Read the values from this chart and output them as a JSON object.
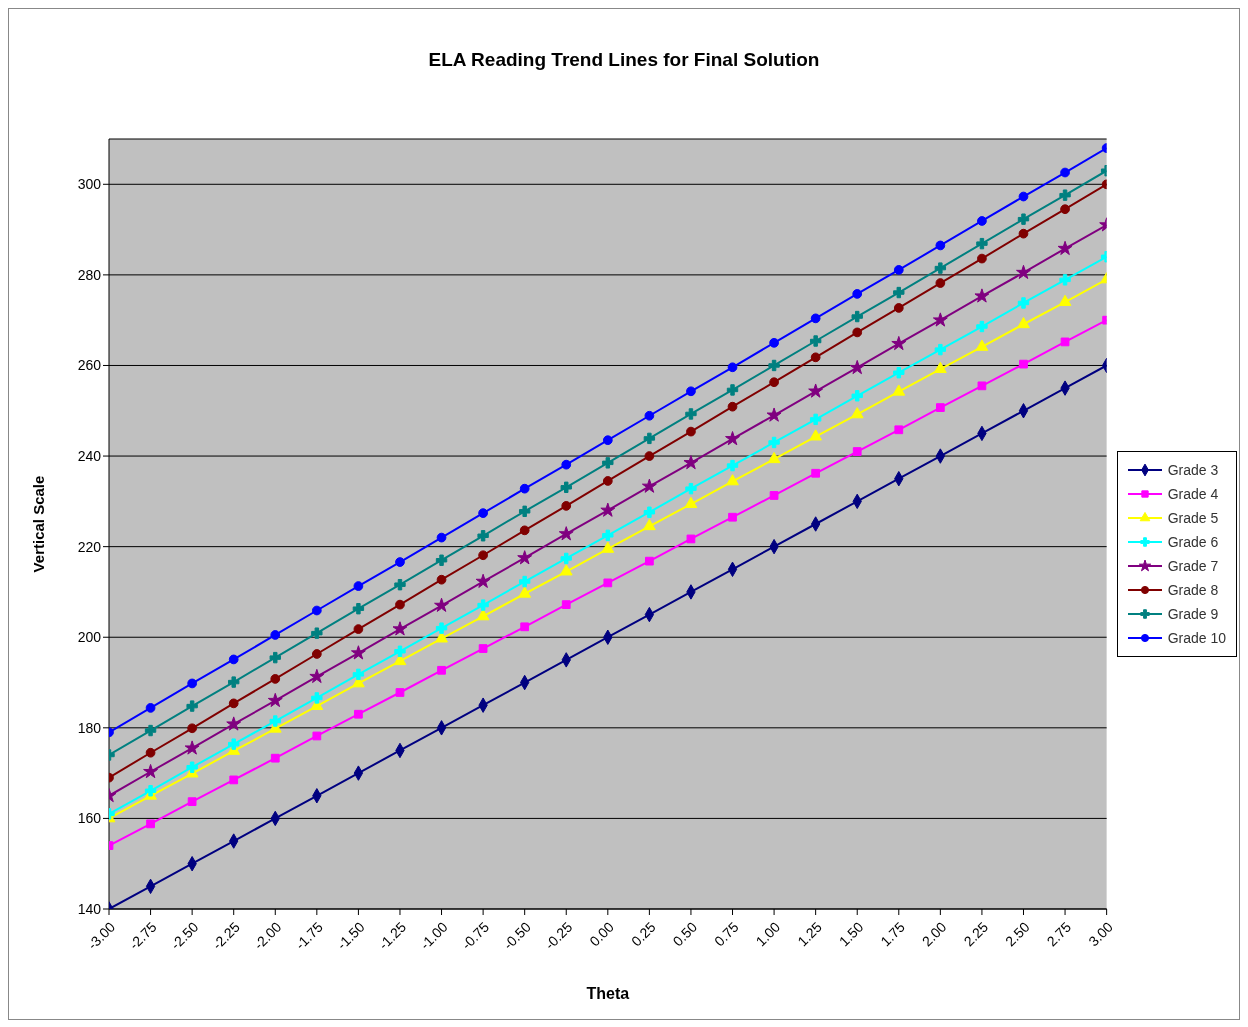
{
  "chart_data": {
    "type": "line",
    "title": "ELA Reading Trend Lines for Final Solution",
    "xlabel": "Theta",
    "ylabel": "Vertical Scale",
    "categories": [
      "-3.00",
      "-2.75",
      "-2.50",
      "-2.25",
      "-2.00",
      "-1.75",
      "-1.50",
      "-1.25",
      "-1.00",
      "-0.75",
      "-0.50",
      "-0.25",
      "0.00",
      "0.25",
      "0.50",
      "0.75",
      "1.00",
      "1.25",
      "1.50",
      "1.75",
      "2.00",
      "2.25",
      "2.50",
      "2.75",
      "3.00"
    ],
    "ylim": [
      140,
      310
    ],
    "yticks": [
      140,
      160,
      180,
      200,
      220,
      240,
      260,
      280,
      300
    ],
    "grid": "y",
    "legend": "right",
    "series": [
      {
        "name": "Grade 3",
        "color": "#000080",
        "marker": "diamond",
        "values": [
          140,
          145,
          150,
          155,
          160,
          165,
          170,
          175,
          180,
          185,
          190,
          195,
          200,
          205,
          210,
          215,
          220,
          225,
          230,
          235,
          240,
          245,
          250,
          255,
          260
        ]
      },
      {
        "name": "Grade 4",
        "color": "#ff00ff",
        "marker": "square",
        "values": [
          154,
          158.8,
          163.7,
          168.5,
          173.3,
          178.2,
          183,
          187.8,
          192.7,
          197.5,
          202.3,
          207.2,
          212,
          216.8,
          221.7,
          226.5,
          231.3,
          236.2,
          241,
          245.8,
          250.7,
          255.5,
          260.3,
          265.2,
          270
        ]
      },
      {
        "name": "Grade 5",
        "color": "#ffff00",
        "marker": "triangle",
        "values": [
          160,
          165,
          169.9,
          174.9,
          179.8,
          184.8,
          189.8,
          194.7,
          199.7,
          204.6,
          209.6,
          214.5,
          219.5,
          224.5,
          229.4,
          234.4,
          239.3,
          244.3,
          249.2,
          254.2,
          259.2,
          264.1,
          269.1,
          274,
          279
        ]
      },
      {
        "name": "Grade 6",
        "color": "#00ffff",
        "marker": "cross",
        "values": [
          161,
          166.1,
          171.3,
          176.4,
          181.5,
          186.6,
          191.8,
          196.9,
          202,
          207.1,
          212.3,
          217.4,
          222.5,
          227.6,
          232.8,
          237.9,
          243,
          248.1,
          253.3,
          258.4,
          263.5,
          268.6,
          273.8,
          278.9,
          284
        ]
      },
      {
        "name": "Grade 7",
        "color": "#800080",
        "marker": "star",
        "values": [
          165,
          170.3,
          175.5,
          180.8,
          186,
          191.3,
          196.5,
          201.8,
          207,
          212.3,
          217.5,
          222.8,
          228,
          233.3,
          238.5,
          243.8,
          249,
          254.3,
          259.5,
          264.8,
          270,
          275.3,
          280.5,
          285.8,
          291
        ]
      },
      {
        "name": "Grade 8",
        "color": "#800000",
        "marker": "circle",
        "values": [
          169,
          174.5,
          179.9,
          185.4,
          190.8,
          196.3,
          201.8,
          207.2,
          212.7,
          218.1,
          223.6,
          229,
          234.5,
          240,
          245.4,
          250.9,
          256.3,
          261.8,
          267.3,
          272.7,
          278.2,
          283.6,
          289.1,
          294.5,
          300
        ]
      },
      {
        "name": "Grade 9",
        "color": "#008080",
        "marker": "cross",
        "values": [
          174,
          179.4,
          184.8,
          190.1,
          195.5,
          200.9,
          206.3,
          211.6,
          217,
          222.4,
          227.8,
          233.1,
          238.5,
          243.9,
          249.3,
          254.6,
          260,
          265.4,
          270.8,
          276.1,
          281.5,
          286.9,
          292.3,
          297.6,
          303
        ]
      },
      {
        "name": "Grade 10",
        "color": "#0000ff",
        "marker": "circle",
        "values": [
          179,
          184.4,
          189.8,
          195.1,
          200.5,
          205.9,
          211.3,
          216.6,
          222,
          227.4,
          232.8,
          238.1,
          243.5,
          248.9,
          254.3,
          259.6,
          265,
          270.4,
          275.8,
          281.1,
          286.5,
          291.9,
          297.3,
          302.6,
          308
        ]
      }
    ]
  }
}
